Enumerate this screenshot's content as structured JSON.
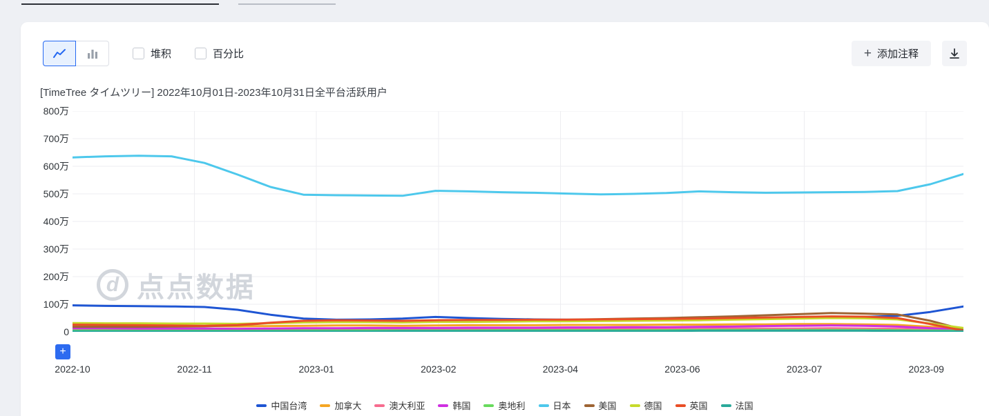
{
  "toolbar": {
    "chart_type_active": "line",
    "stacked_label": "堆积",
    "stacked_checked": false,
    "percent_label": "百分比",
    "percent_checked": false,
    "annotate_label": "添加注释",
    "plus_glyph": "+"
  },
  "watermark": {
    "logo_letter": "d",
    "text": "点点数据"
  },
  "datazoom": {
    "expand_glyph": "+"
  },
  "chart_data": {
    "type": "line",
    "title": "[TimeTree タイムツリー] 2022年10月01日-2023年10月31日全平台活跃用户",
    "y_unit": "万",
    "ylim": [
      0,
      800
    ],
    "y_ticks_top_down": [
      "800万",
      "700万",
      "600万",
      "500万",
      "400万",
      "300万",
      "200万",
      "100万",
      "0"
    ],
    "x_labels": [
      "2022-10",
      "2022-11",
      "2023-01",
      "2023-02",
      "2023-04",
      "2023-06",
      "2023-07",
      "2023-09"
    ],
    "x_label_step_fraction": 0.1369,
    "grid": true,
    "legend_position": "bottom",
    "series": [
      {
        "id": "taiwan",
        "name": "中国台湾",
        "color": "#1e55d3",
        "values": [
          96,
          94,
          93,
          92,
          90,
          80,
          62,
          48,
          44,
          45,
          48,
          54,
          50,
          47,
          45,
          44,
          43,
          43,
          44,
          45,
          46,
          48,
          50,
          52,
          54,
          58,
          72,
          92
        ]
      },
      {
        "id": "canada",
        "name": "加拿大",
        "color": "#f5a623",
        "values": [
          23,
          22,
          22,
          21,
          21,
          20,
          21,
          22,
          23,
          23,
          22,
          23,
          24,
          24,
          24,
          25,
          25,
          25,
          26,
          26,
          27,
          27,
          28,
          28,
          27,
          25,
          18,
          10
        ]
      },
      {
        "id": "australia",
        "name": "澳大利亚",
        "color": "#f76c8f",
        "values": [
          9,
          9,
          9,
          8,
          8,
          8,
          8,
          9,
          9,
          9,
          9,
          10,
          10,
          10,
          10,
          10,
          11,
          11,
          11,
          11,
          12,
          12,
          12,
          13,
          12,
          11,
          8,
          6
        ]
      },
      {
        "id": "korea",
        "name": "韩国",
        "color": "#cf2fe1",
        "values": [
          13,
          13,
          12,
          12,
          12,
          11,
          12,
          13,
          13,
          14,
          14,
          14,
          15,
          15,
          15,
          16,
          16,
          17,
          17,
          18,
          19,
          21,
          22,
          23,
          22,
          19,
          13,
          8
        ]
      },
      {
        "id": "austria",
        "name": "奥地利",
        "color": "#68da5d",
        "values": [
          5,
          5,
          4,
          4,
          4,
          4,
          4,
          5,
          5,
          5,
          5,
          5,
          5,
          6,
          6,
          6,
          6,
          6,
          6,
          7,
          7,
          7,
          7,
          7,
          7,
          6,
          5,
          4
        ]
      },
      {
        "id": "japan",
        "name": "日本",
        "color": "#4dc8ec",
        "values": [
          632,
          636,
          638,
          636,
          612,
          570,
          525,
          497,
          495,
          494,
          493,
          511,
          509,
          506,
          504,
          501,
          498,
          500,
          503,
          509,
          506,
          504,
          505,
          506,
          507,
          510,
          535,
          572
        ]
      },
      {
        "id": "usa",
        "name": "美国",
        "color": "#9e6433",
        "values": [
          18,
          18,
          18,
          19,
          20,
          24,
          32,
          38,
          40,
          39,
          38,
          40,
          41,
          42,
          43,
          44,
          46,
          48,
          50,
          53,
          56,
          60,
          64,
          68,
          66,
          63,
          40,
          8
        ]
      },
      {
        "id": "germany",
        "name": "德国",
        "color": "#c6da2b",
        "values": [
          32,
          31,
          31,
          30,
          30,
          29,
          31,
          34,
          35,
          35,
          34,
          36,
          36,
          37,
          38,
          38,
          39,
          40,
          41,
          42,
          44,
          46,
          48,
          50,
          49,
          45,
          30,
          14
        ]
      },
      {
        "id": "uk",
        "name": "英国",
        "color": "#e94e26",
        "values": [
          26,
          25,
          24,
          23,
          22,
          25,
          33,
          40,
          42,
          41,
          40,
          42,
          43,
          43,
          44,
          44,
          45,
          46,
          47,
          48,
          50,
          52,
          54,
          56,
          55,
          50,
          28,
          4
        ]
      },
      {
        "id": "france",
        "name": "法国",
        "color": "#2aa99a",
        "values": [
          2,
          2,
          2,
          2,
          2,
          2,
          2,
          2,
          2,
          2,
          3,
          3,
          3,
          3,
          3,
          3,
          3,
          3,
          3,
          4,
          4,
          4,
          4,
          4,
          4,
          3,
          2,
          2
        ]
      }
    ]
  }
}
